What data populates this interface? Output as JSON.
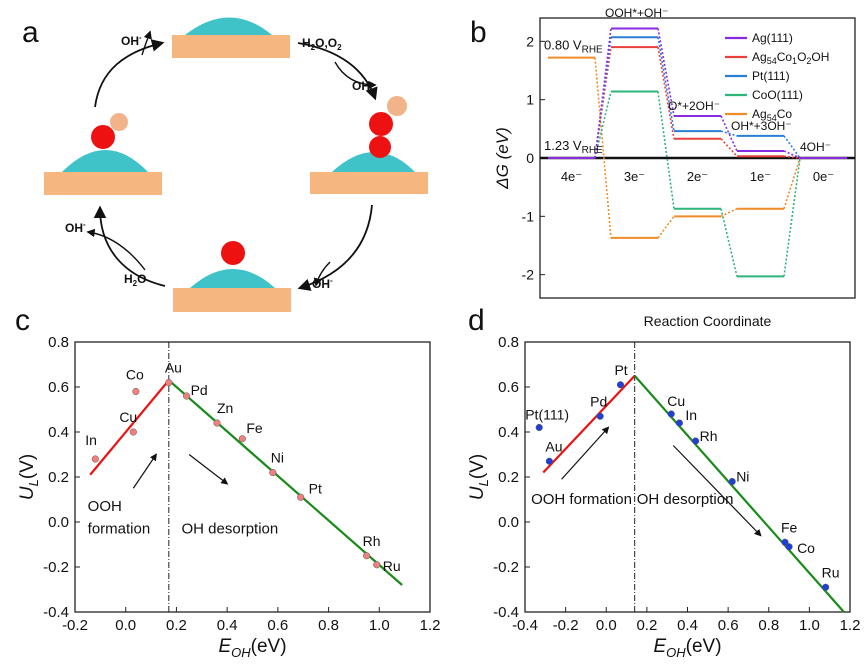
{
  "panel_labels": {
    "a": "a",
    "b": "b",
    "c": "c",
    "d": "d"
  },
  "panel_a": {
    "labels": {
      "oh_top": "OH",
      "oh_top_sup": "-",
      "h2o_o2": "H",
      "h2o_o2_sub": "2",
      "h2o_o2_mid": "O,O",
      "h2o_o2_sub2": "2",
      "oh_right": "OH",
      "oh_right_sup": "-",
      "oh_bottom": "OH",
      "oh_bottom_sup": "-",
      "h2o": "H",
      "h2o_sub": "2",
      "h2o_end": "O",
      "oh_left": "OH",
      "oh_left_sup": "-"
    },
    "colors": {
      "substrate": "#f5b77f",
      "cap": "#3fc3c8",
      "oxygen": "#ee1111",
      "hydrogen": "#f3b38a"
    }
  },
  "chart_data": [
    {
      "id": "b",
      "type": "line",
      "subtype": "free-energy-step",
      "ylabel": "ΔG (eV)",
      "xlabel": "Reaction Coordinate",
      "ylim": [
        -2.4,
        2.4
      ],
      "yticks": [
        -2,
        -1,
        0,
        1,
        2
      ],
      "step_labels": [
        "4e⁻",
        "3e⁻",
        "2e⁻",
        "1e⁻",
        "0e⁻"
      ],
      "intermediates": [
        "OOH*+OH⁻",
        "O*+2OH⁻",
        "OH*+3OH⁻",
        "4OH⁻"
      ],
      "annotations": [
        "0.80 V",
        "1.23 V"
      ],
      "annotation_sub": "RHE",
      "legend_position": "top-right",
      "series": [
        {
          "name": "Ag(111)",
          "color": "#8a2be2",
          "values": [
            0,
            2.22,
            0.72,
            0.12,
            0
          ]
        },
        {
          "name": "Ag54Co1O2OH",
          "color": "#e8413c",
          "values": [
            0,
            1.9,
            0.33,
            0.03,
            0
          ]
        },
        {
          "name": "Pt(111)",
          "color": "#2a7fd4",
          "values": [
            0,
            2.07,
            0.46,
            0.38,
            0
          ]
        },
        {
          "name": "CoO(111)",
          "color": "#2db47a",
          "values": [
            0,
            1.14,
            -0.87,
            -2.03,
            0
          ]
        },
        {
          "name": "Ag54Co",
          "color": "#f08c28",
          "values": [
            1.72,
            -1.37,
            -1.0,
            -0.87,
            0
          ]
        }
      ],
      "baseline_1_23": 0
    },
    {
      "id": "c",
      "type": "scatter",
      "xlabel": "E",
      "xlabel_sub": "OH",
      "xlabel_unit": "(eV)",
      "ylabel": "U",
      "ylabel_sub": "L",
      "ylabel_unit": "(V)",
      "xlim": [
        -0.2,
        1.2
      ],
      "ylim": [
        -0.4,
        0.8
      ],
      "xticks": [
        -0.2,
        0.0,
        0.2,
        0.4,
        0.6,
        0.8,
        1.0,
        1.2
      ],
      "yticks": [
        -0.4,
        -0.2,
        0.0,
        0.2,
        0.4,
        0.6,
        0.8
      ],
      "vline_x": 0.17,
      "left_line": {
        "color": "#ee1111",
        "x": [
          -0.14,
          0.17
        ],
        "y": [
          0.21,
          0.63
        ]
      },
      "right_line": {
        "color": "#1a8a1a",
        "x": [
          0.17,
          1.09
        ],
        "y": [
          0.63,
          -0.28
        ]
      },
      "region_labels": {
        "left_1": "OOH",
        "left_2": "formation",
        "right": "OH desorption"
      },
      "point_color": "#f08080",
      "points": [
        {
          "label": "In",
          "x": -0.12,
          "y": 0.28
        },
        {
          "label": "Cu",
          "x": 0.03,
          "y": 0.4
        },
        {
          "label": "Co",
          "x": 0.04,
          "y": 0.58
        },
        {
          "label": "Au",
          "x": 0.17,
          "y": 0.62
        },
        {
          "label": "Pd",
          "x": 0.24,
          "y": 0.56
        },
        {
          "label": "Zn",
          "x": 0.36,
          "y": 0.44
        },
        {
          "label": "Fe",
          "x": 0.46,
          "y": 0.37
        },
        {
          "label": "Ni",
          "x": 0.58,
          "y": 0.22
        },
        {
          "label": "Pt",
          "x": 0.69,
          "y": 0.11
        },
        {
          "label": "Rh",
          "x": 0.95,
          "y": -0.15
        },
        {
          "label": "Ru",
          "x": 0.99,
          "y": -0.19
        }
      ]
    },
    {
      "id": "d",
      "type": "scatter",
      "xlabel": "E",
      "xlabel_sub": "OH",
      "xlabel_unit": "(eV)",
      "ylabel": "U",
      "ylabel_sub": "L",
      "ylabel_unit": "(V)",
      "xlim": [
        -0.4,
        1.2
      ],
      "ylim": [
        -0.4,
        0.8
      ],
      "xticks": [
        -0.4,
        -0.2,
        0.0,
        0.2,
        0.4,
        0.6,
        0.8,
        1.0,
        1.2
      ],
      "yticks": [
        -0.4,
        -0.2,
        0.0,
        0.2,
        0.4,
        0.6,
        0.8
      ],
      "vline_x": 0.14,
      "left_line": {
        "color": "#ee1111",
        "x": [
          -0.31,
          0.14
        ],
        "y": [
          0.22,
          0.65
        ]
      },
      "right_line": {
        "color": "#1a8a1a",
        "x": [
          0.14,
          1.17
        ],
        "y": [
          0.65,
          -0.4
        ]
      },
      "region_labels": {
        "left": "OOH formation",
        "right": "OH desorption"
      },
      "point_color": "#1f3fd8",
      "points": [
        {
          "label": "Au",
          "x": -0.28,
          "y": 0.27
        },
        {
          "label": "Pt(111)",
          "x": -0.33,
          "y": 0.42
        },
        {
          "label": "Pd",
          "x": -0.03,
          "y": 0.47
        },
        {
          "label": "Pt",
          "x": 0.07,
          "y": 0.61
        },
        {
          "label": "Cu",
          "x": 0.32,
          "y": 0.48
        },
        {
          "label": "In",
          "x": 0.36,
          "y": 0.44
        },
        {
          "label": "Rh",
          "x": 0.44,
          "y": 0.36
        },
        {
          "label": "Ni",
          "x": 0.62,
          "y": 0.18
        },
        {
          "label": "Fe",
          "x": 0.88,
          "y": -0.09
        },
        {
          "label": "Co",
          "x": 0.9,
          "y": -0.11
        },
        {
          "label": "Ru",
          "x": 1.08,
          "y": -0.29
        }
      ]
    }
  ]
}
